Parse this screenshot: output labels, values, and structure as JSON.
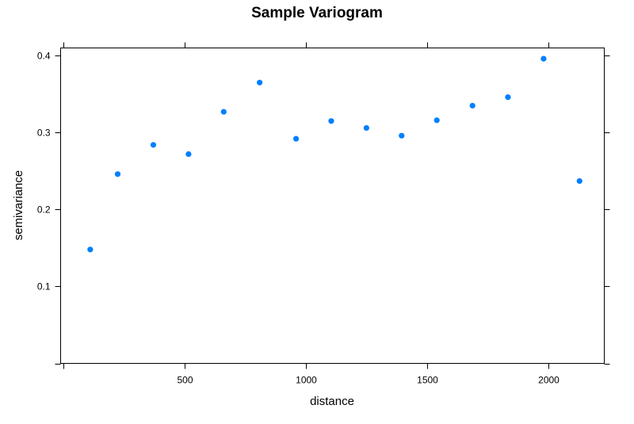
{
  "chart_data": {
    "type": "scatter",
    "title": "Sample Variogram",
    "xlabel": "distance",
    "ylabel": "semivariance",
    "xlim": [
      -10,
      2230
    ],
    "ylim": [
      0,
      0.41
    ],
    "xticks": [
      500,
      1000,
      1500,
      2000
    ],
    "xtick_labels": [
      "500",
      "1000",
      "1500",
      "2000"
    ],
    "yticks": [
      0.1,
      0.2,
      0.3,
      0.4
    ],
    "ytick_labels": [
      "0.1",
      "0.2",
      "0.3",
      "0.4"
    ],
    "grid": false,
    "legend": "none",
    "point_color": "#0080ff",
    "x": [
      112,
      225,
      372,
      517,
      662,
      810,
      960,
      1105,
      1250,
      1395,
      1540,
      1687,
      1833,
      1980,
      2128
    ],
    "y": [
      0.148,
      0.246,
      0.284,
      0.272,
      0.327,
      0.365,
      0.292,
      0.315,
      0.306,
      0.296,
      0.316,
      0.335,
      0.346,
      0.396,
      0.237
    ]
  }
}
